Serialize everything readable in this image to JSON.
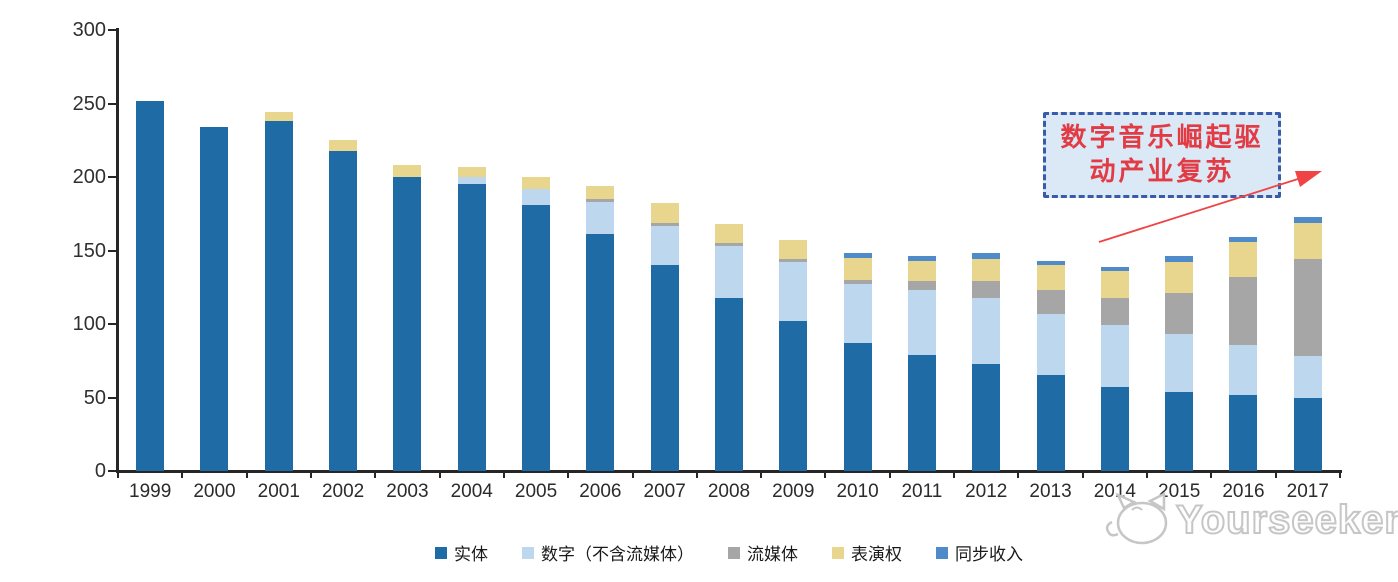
{
  "watermark": {
    "brand": "Yourseeker"
  },
  "annotation": {
    "line1": "数字音乐崛起驱",
    "line2": "动产业复苏",
    "text_color": "#e23b44",
    "box_fill": "#dbe8f6",
    "box_border": "#3a5ba9",
    "arrow_color": "#f04343"
  },
  "chart_data": {
    "type": "bar",
    "stacked": true,
    "title": "",
    "xlabel": "",
    "ylabel": "",
    "ylim": [
      0,
      300
    ],
    "y_ticks": [
      0,
      50,
      100,
      150,
      200,
      250,
      300
    ],
    "grid": false,
    "legend_position": "bottom",
    "categories": [
      "1999",
      "2000",
      "2001",
      "2002",
      "2003",
      "2004",
      "2005",
      "2006",
      "2007",
      "2008",
      "2009",
      "2010",
      "2011",
      "2012",
      "2013",
      "2014",
      "2015",
      "2016",
      "2017"
    ],
    "series": [
      {
        "name": "实体",
        "color": "#1f6ba5",
        "values": [
          252,
          234,
          238,
          218,
          200,
          195,
          181,
          161,
          140,
          118,
          102,
          87,
          79,
          73,
          65,
          57,
          54,
          52,
          50
        ]
      },
      {
        "name": "数字（不含流媒体）",
        "color": "#bdd7ee",
        "values": [
          0,
          0,
          0,
          0,
          0,
          5,
          11,
          22,
          27,
          35,
          40,
          40,
          44,
          45,
          42,
          42,
          39,
          34,
          28
        ]
      },
      {
        "name": "流媒体",
        "color": "#a6a6a6",
        "values": [
          0,
          0,
          0,
          0,
          0,
          0,
          0,
          2,
          2,
          2,
          2,
          3,
          6,
          11,
          16,
          19,
          28,
          46,
          66
        ]
      },
      {
        "name": "表演权",
        "color": "#e8d58e",
        "values": [
          0,
          0,
          6,
          7,
          8,
          7,
          8,
          9,
          13,
          13,
          13,
          15,
          14,
          15,
          17,
          18,
          21,
          24,
          25
        ]
      },
      {
        "name": "同步收入",
        "color": "#4e8bc8",
        "values": [
          0,
          0,
          0,
          0,
          0,
          0,
          0,
          0,
          0,
          0,
          0,
          3,
          3,
          4,
          3,
          3,
          4,
          3,
          4
        ]
      }
    ],
    "axis_color": "#262626"
  }
}
